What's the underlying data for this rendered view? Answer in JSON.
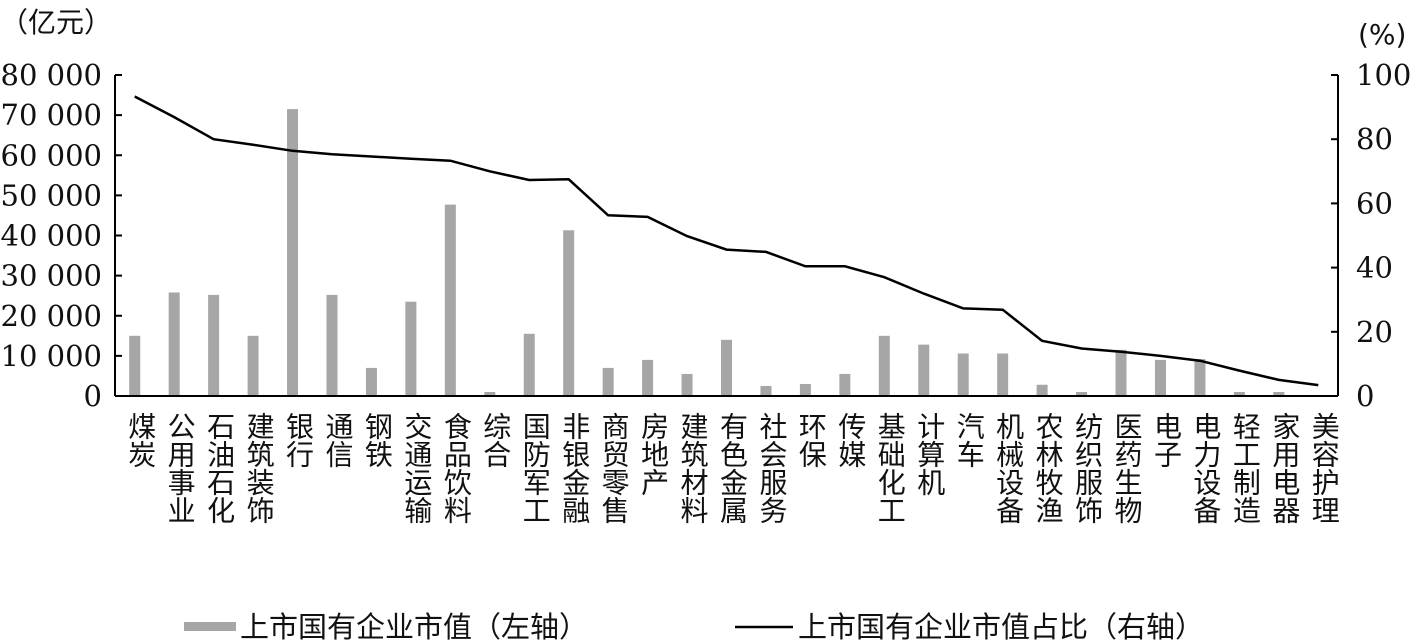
{
  "chart_data": {
    "type": "bar",
    "categories": [
      "煤炭",
      "公用事业",
      "石油石化",
      "建筑装饰",
      "银行",
      "通信",
      "钢铁",
      "交通运输",
      "食品饮料",
      "综合",
      "国防军工",
      "非银金融",
      "商贸零售",
      "房地产",
      "建筑材料",
      "有色金属",
      "社会服务",
      "环保",
      "传媒",
      "基础化工",
      "计算机",
      "汽车",
      "机械设备",
      "农林牧渔",
      "纺织服饰",
      "医药生物",
      "电子",
      "电力设备",
      "轻工制造",
      "家用电器",
      "美容护理"
    ],
    "series": [
      {
        "name": "上市国有企业市值（左轴）",
        "axis": "left",
        "type": "bar",
        "color": "#a6a6a6",
        "values": [
          15000,
          25800,
          25200,
          15000,
          71500,
          25200,
          7000,
          23500,
          47700,
          1000,
          15500,
          41300,
          7000,
          9000,
          5500,
          14000,
          2500,
          3000,
          5500,
          15000,
          12800,
          10600,
          10600,
          2800,
          1000,
          11500,
          9000,
          9200,
          1000,
          1000,
          0
        ]
      },
      {
        "name": "上市国有企业市值占比（右轴）",
        "axis": "right",
        "type": "line",
        "color": "#000000",
        "values": [
          93.3,
          86.9,
          80.0,
          78.3,
          76.4,
          75.3,
          74.6,
          73.9,
          73.3,
          70.0,
          67.3,
          67.5,
          56.3,
          55.8,
          49.8,
          45.6,
          44.9,
          40.4,
          40.4,
          37.0,
          31.9,
          27.3,
          26.9,
          17.2,
          14.8,
          13.8,
          12.5,
          11.0,
          7.9,
          5.0,
          3.4
        ]
      }
    ],
    "y_left": {
      "unit": "（亿元）",
      "ticks": [
        "0",
        "10 000",
        "20 000",
        "30 000",
        "40 000",
        "50 000",
        "60 000",
        "70 000",
        "80 000"
      ],
      "ylim": [
        0,
        80000
      ]
    },
    "y_right": {
      "unit": "(%)",
      "ticks": [
        "0",
        "20",
        "40",
        "60",
        "80",
        "100"
      ],
      "ylim": [
        0,
        100
      ]
    },
    "legend": {
      "placement": "bottom-center",
      "items": [
        "上市国有企业市值（左轴）",
        "上市国有企业市值占比（右轴）"
      ]
    },
    "grid": false
  }
}
